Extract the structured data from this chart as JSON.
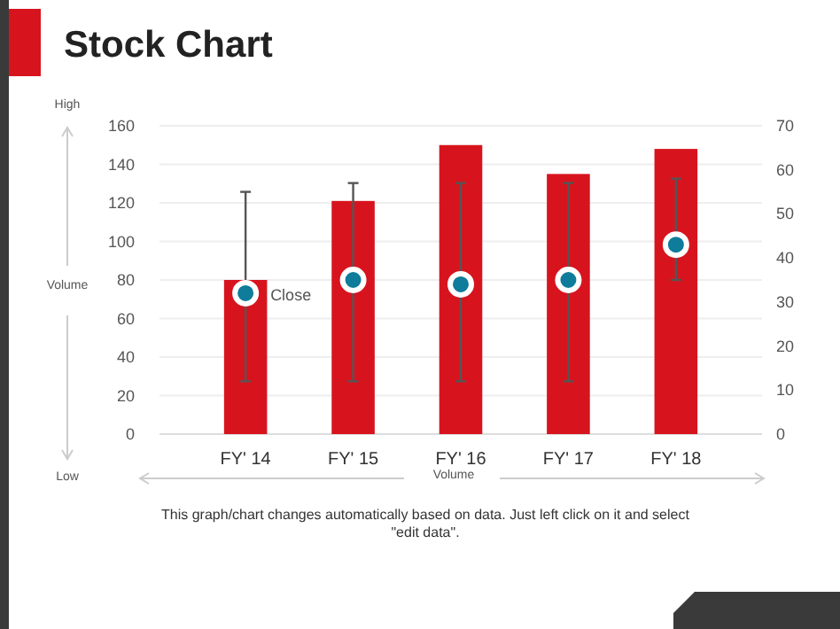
{
  "chart_data": {
    "type": "bar",
    "title": "Stock Chart",
    "ylabel": "Volume",
    "xlabel": "Volume",
    "categories": [
      "FY' 14",
      "FY' 15",
      "FY' 16",
      "FY' 17",
      "FY' 18"
    ],
    "series": [
      {
        "color": "#d7141e",
        "values": [
          80,
          121,
          150,
          135,
          148
        ]
      },
      {
        "type": "scatter",
        "name": "Close",
        "axis": "y2",
        "color": "#0e7c9a",
        "values": [
          32,
          35,
          34,
          35,
          43
        ],
        "errors": [
          [
            12,
            55
          ],
          [
            12,
            57
          ],
          [
            12,
            57
          ],
          [
            12,
            57
          ],
          [
            35,
            58
          ]
        ]
      }
    ],
    "ylim": [
      0,
      160
    ],
    "yticks": [
      0,
      20,
      40,
      60,
      80,
      100,
      120,
      140,
      160
    ],
    "y2lim": [
      0,
      70
    ],
    "y2ticks": [
      0,
      10,
      20,
      30,
      40,
      50,
      60,
      70
    ],
    "grid": "y",
    "marker": "circle",
    "annotations": [
      "High",
      "Low",
      "This graph/chart changes automatically based on data. Just left click on it and select \"edit data\"."
    ]
  }
}
